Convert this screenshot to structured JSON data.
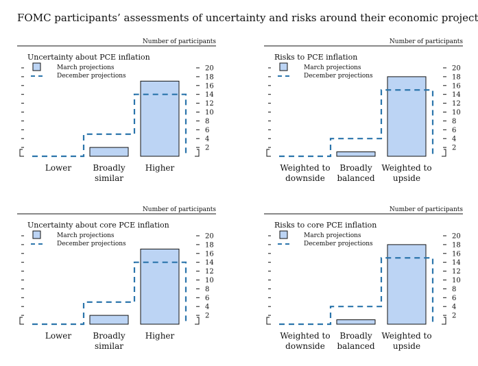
{
  "figure": {
    "title": "FOMC participants’ assessments of uncertainty and risks around their economic projections"
  },
  "colors": {
    "march_fill": "#bcd4f4",
    "march_edge": "#111111",
    "december_line": "#2a74ab"
  },
  "chart_data": [
    {
      "type": "bar",
      "title": "Uncertainty about PCE inflation",
      "ylabel": "Number of participants",
      "categories": [
        "Lower",
        "Broadly similar",
        "Higher"
      ],
      "series": [
        {
          "name": "March projections",
          "values": [
            0,
            2,
            17
          ]
        },
        {
          "name": "December projections",
          "values": [
            0,
            5,
            14
          ]
        }
      ],
      "ylim": [
        0,
        20
      ],
      "yticks": [
        "20",
        "18",
        "16",
        "14",
        "12",
        "10",
        "8",
        "6",
        "4",
        "2"
      ],
      "legend": "top-left"
    },
    {
      "type": "bar",
      "title": "Risks to PCE inflation",
      "ylabel": "Number of participants",
      "categories": [
        "Weighted to downside",
        "Broadly balanced",
        "Weighted to upside"
      ],
      "series": [
        {
          "name": "March projections",
          "values": [
            0,
            1,
            18
          ]
        },
        {
          "name": "December projections",
          "values": [
            0,
            4,
            15
          ]
        }
      ],
      "ylim": [
        0,
        20
      ],
      "yticks": [
        "20",
        "18",
        "16",
        "14",
        "12",
        "10",
        "8",
        "6",
        "4",
        "2"
      ],
      "legend": "top-left"
    },
    {
      "type": "bar",
      "title": "Uncertainty about core PCE inflation",
      "ylabel": "Number of participants",
      "categories": [
        "Lower",
        "Broadly similar",
        "Higher"
      ],
      "series": [
        {
          "name": "March projections",
          "values": [
            0,
            2,
            17
          ]
        },
        {
          "name": "December projections",
          "values": [
            0,
            5,
            14
          ]
        }
      ],
      "ylim": [
        0,
        20
      ],
      "yticks": [
        "20",
        "18",
        "16",
        "14",
        "12",
        "10",
        "8",
        "6",
        "4",
        "2"
      ],
      "legend": "top-left"
    },
    {
      "type": "bar",
      "title": "Risks to core PCE inflation",
      "ylabel": "Number of participants",
      "categories": [
        "Weighted to downside",
        "Broadly balanced",
        "Weighted to upside"
      ],
      "series": [
        {
          "name": "March projections",
          "values": [
            0,
            1,
            18
          ]
        },
        {
          "name": "December projections",
          "values": [
            0,
            4,
            15
          ]
        }
      ],
      "ylim": [
        0,
        20
      ],
      "yticks": [
        "20",
        "18",
        "16",
        "14",
        "12",
        "10",
        "8",
        "6",
        "4",
        "2"
      ],
      "legend": "top-left"
    }
  ]
}
